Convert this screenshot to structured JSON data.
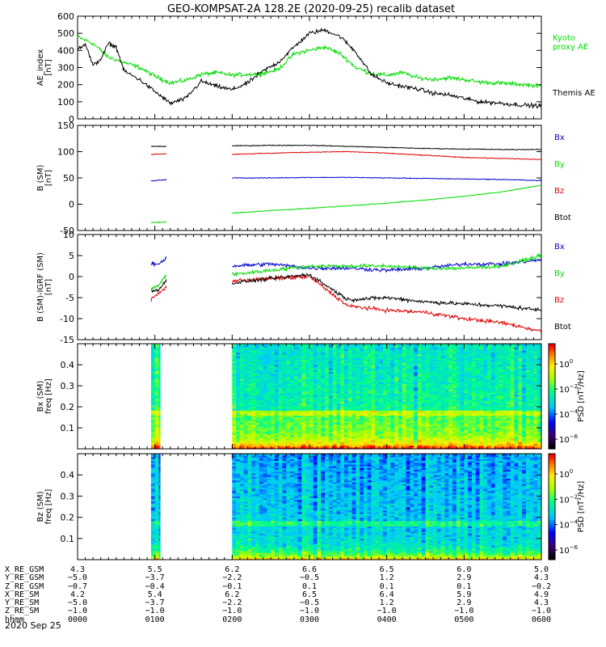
{
  "title": "GEO-KOMPSAT-2A 128.2E (2020-09-25) recalib dataset",
  "colors": {
    "black": "#000000",
    "red": "#e00000",
    "green": "#00dd00",
    "blue": "#0000cc"
  },
  "x_ticks_hours": [
    0,
    1,
    2,
    3,
    4,
    5,
    6
  ],
  "chart_data": [
    {
      "type": "line",
      "id": "ae",
      "ylabel": "AE_index\n[nT]",
      "ylim": [
        0,
        600
      ],
      "yticks": [
        0,
        100,
        200,
        300,
        400,
        500,
        600
      ],
      "xlim_hours": [
        0,
        6
      ],
      "series": [
        {
          "name": "Kyoto\nproxy AE",
          "color": "#00dd00",
          "x": [
            0,
            0.2,
            0.4,
            0.6,
            0.8,
            1.0,
            1.2,
            1.4,
            1.6,
            1.8,
            2.0,
            2.2,
            2.4,
            2.6,
            2.8,
            3.0,
            3.2,
            3.4,
            3.6,
            3.8,
            4.0,
            4.2,
            4.4,
            4.6,
            4.8,
            5.0,
            5.2,
            5.4,
            5.6,
            5.8,
            6.0
          ],
          "y": [
            480,
            440,
            360,
            330,
            300,
            250,
            210,
            225,
            260,
            270,
            255,
            260,
            265,
            290,
            380,
            400,
            420,
            380,
            300,
            265,
            255,
            270,
            240,
            230,
            240,
            230,
            215,
            210,
            205,
            200,
            190
          ]
        },
        {
          "name": "Themis AE",
          "color": "#000000",
          "x": [
            0,
            0.1,
            0.2,
            0.3,
            0.4,
            0.5,
            0.6,
            0.8,
            1.0,
            1.2,
            1.4,
            1.6,
            1.8,
            2.0,
            2.2,
            2.4,
            2.6,
            2.8,
            3.0,
            3.2,
            3.4,
            3.6,
            3.8,
            4.0,
            4.2,
            4.4,
            4.6,
            4.8,
            5.0,
            5.2,
            5.4,
            5.6,
            5.8,
            6.0
          ],
          "y": [
            410,
            440,
            310,
            350,
            440,
            420,
            280,
            230,
            160,
            90,
            120,
            220,
            190,
            170,
            210,
            280,
            330,
            420,
            500,
            520,
            480,
            390,
            260,
            210,
            190,
            175,
            150,
            140,
            120,
            100,
            95,
            85,
            80,
            75
          ]
        }
      ]
    },
    {
      "type": "line",
      "id": "bsm",
      "ylabel": "B (SM)\n[nT]",
      "ylim": [
        -50,
        150
      ],
      "yticks": [
        -50,
        0,
        50,
        100,
        150
      ],
      "xlim_hours": [
        0,
        6
      ],
      "series": [
        {
          "name": "Bx",
          "color": "#0000cc",
          "segments": [
            {
              "x": [
                0.95,
                1.15
              ],
              "y": [
                44,
                47
              ]
            },
            {
              "x": [
                2.0,
                2.5,
                3.0,
                3.5,
                4.0,
                4.5,
                5.0,
                5.5,
                6.0
              ],
              "y": [
                50,
                50,
                51,
                51,
                50,
                49,
                48,
                47,
                45
              ]
            }
          ]
        },
        {
          "name": "By",
          "color": "#00dd00",
          "segments": [
            {
              "x": [
                0.95,
                1.15
              ],
              "y": [
                -35,
                -34
              ]
            },
            {
              "x": [
                2.0,
                2.5,
                3.0,
                3.5,
                4.0,
                4.5,
                5.0,
                5.5,
                6.0
              ],
              "y": [
                -17,
                -12,
                -8,
                -3,
                2,
                8,
                15,
                24,
                36
              ]
            }
          ]
        },
        {
          "name": "Bz",
          "color": "#e00000",
          "segments": [
            {
              "x": [
                0.95,
                1.15
              ],
              "y": [
                95,
                96
              ]
            },
            {
              "x": [
                2.0,
                2.5,
                3.0,
                3.5,
                4.0,
                4.5,
                5.0,
                5.5,
                6.0
              ],
              "y": [
                95,
                97,
                99,
                100,
                97,
                93,
                89,
                87,
                85
              ]
            }
          ]
        },
        {
          "name": "Btot",
          "color": "#000000",
          "segments": [
            {
              "x": [
                0.95,
                1.15
              ],
              "y": [
                110,
                110
              ]
            },
            {
              "x": [
                2.0,
                2.5,
                3.0,
                3.5,
                4.0,
                4.5,
                5.0,
                5.5,
                6.0
              ],
              "y": [
                111,
                112,
                112,
                110,
                108,
                106,
                105,
                104,
                104
              ]
            }
          ]
        }
      ]
    },
    {
      "type": "line",
      "id": "bigrf",
      "ylabel": "B (SM)-IGRF (SM)\n[nT]",
      "ylim": [
        -15,
        10
      ],
      "yticks": [
        -15,
        -10,
        -5,
        0,
        5,
        10
      ],
      "xlim_hours": [
        0,
        6
      ],
      "series": [
        {
          "name": "Bx",
          "color": "#0000cc",
          "segments": [
            {
              "x": [
                0.95,
                1.05,
                1.15
              ],
              "y": [
                3,
                3,
                4.5
              ]
            },
            {
              "x": [
                2.0,
                2.5,
                3.0,
                3.5,
                4.0,
                4.5,
                5.0,
                5.5,
                6.0
              ],
              "y": [
                2.5,
                3,
                2,
                2,
                1.5,
                2,
                3,
                3,
                4
              ]
            }
          ]
        },
        {
          "name": "By",
          "color": "#00dd00",
          "segments": [
            {
              "x": [
                0.95,
                1.05,
                1.15
              ],
              "y": [
                -3,
                -2,
                0.5
              ]
            },
            {
              "x": [
                2.0,
                2.5,
                3.0,
                3.5,
                4.0,
                4.5,
                5.0,
                5.5,
                6.0
              ],
              "y": [
                0.5,
                1.5,
                2.5,
                2.5,
                2.5,
                2,
                2,
                2.5,
                5
              ]
            }
          ]
        },
        {
          "name": "Bz",
          "color": "#e00000",
          "segments": [
            {
              "x": [
                0.95,
                1.05,
                1.15
              ],
              "y": [
                -5.5,
                -4,
                -2.5
              ]
            },
            {
              "x": [
                2.0,
                2.5,
                3.0,
                3.5,
                4.0,
                4.5,
                5.0,
                5.5,
                6.0
              ],
              "y": [
                -1,
                -0.5,
                0,
                -7,
                -8,
                -8.5,
                -10,
                -11,
                -13
              ]
            }
          ]
        },
        {
          "name": "Btot",
          "color": "#000000",
          "segments": [
            {
              "x": [
                0.95,
                1.05,
                1.15
              ],
              "y": [
                -3.5,
                -3,
                -1
              ]
            },
            {
              "x": [
                2.0,
                2.5,
                3.0,
                3.5,
                4.0,
                4.5,
                5.0,
                5.5,
                6.0
              ],
              "y": [
                -1.5,
                -0.5,
                0.5,
                -5.5,
                -5,
                -6,
                -6.5,
                -7,
                -8
              ]
            }
          ]
        }
      ]
    },
    {
      "type": "heatmap",
      "id": "bxspec",
      "ylabel": "Bx (SM)\nfreq [Hz]",
      "ylim": [
        0,
        0.5
      ],
      "yticks": [
        0.1,
        0.2,
        0.3,
        0.4
      ],
      "xlim_hours": [
        0,
        6
      ],
      "data_ranges_hours": [
        [
          0.95,
          1.07
        ],
        [
          2.0,
          6.0
        ]
      ],
      "colorbar": {
        "label": "PSD [nT²/Hz]",
        "tick_exponents": [
          0,
          -2,
          -4,
          -6
        ]
      }
    },
    {
      "type": "heatmap",
      "id": "bzspec",
      "ylabel": "Bz (SM)\nfreq [Hz]",
      "ylim": [
        0,
        0.5
      ],
      "yticks": [
        0.1,
        0.2,
        0.3,
        0.4
      ],
      "xlim_hours": [
        0,
        6
      ],
      "data_ranges_hours": [
        [
          0.95,
          1.07
        ],
        [
          2.0,
          6.0
        ]
      ],
      "colorbar": {
        "label": "PSD [nT²/Hz]",
        "tick_exponents": [
          0,
          -2,
          -4,
          -6
        ]
      }
    }
  ],
  "ephemeris": {
    "rows": [
      {
        "label": "X_RE_GSM",
        "values": [
          "4.3",
          "5.5",
          "6.2",
          "6.6",
          "6.5",
          "6.0",
          "5.0"
        ]
      },
      {
        "label": "Y_RE_GSM",
        "values": [
          "−5.0",
          "−3.7",
          "−2.2",
          "−0.5",
          "1.2",
          "2.9",
          "4.3"
        ]
      },
      {
        "label": "Z_RE_GSM",
        "values": [
          "−0.7",
          "−0.4",
          "−0.1",
          "0.1",
          "0.1",
          "0.1",
          "−0.2"
        ]
      },
      {
        "label": "X_RE_SM",
        "values": [
          "4.2",
          "5.4",
          "6.2",
          "6.5",
          "6.4",
          "5.9",
          "4.9"
        ]
      },
      {
        "label": "Y_RE_SM",
        "values": [
          "−5.0",
          "−3.7",
          "−2.2",
          "−0.5",
          "1.2",
          "2.9",
          "4.3"
        ]
      },
      {
        "label": "Z_RE_SM",
        "values": [
          "−1.0",
          "−1.0",
          "−1.0",
          "−1.0",
          "−1.0",
          "−1.0",
          "−1.0"
        ]
      },
      {
        "label": "hhmm",
        "values": [
          "0000",
          "0100",
          "0200",
          "0300",
          "0400",
          "0500",
          "0600"
        ]
      }
    ],
    "date": "2020 Sep 25"
  }
}
